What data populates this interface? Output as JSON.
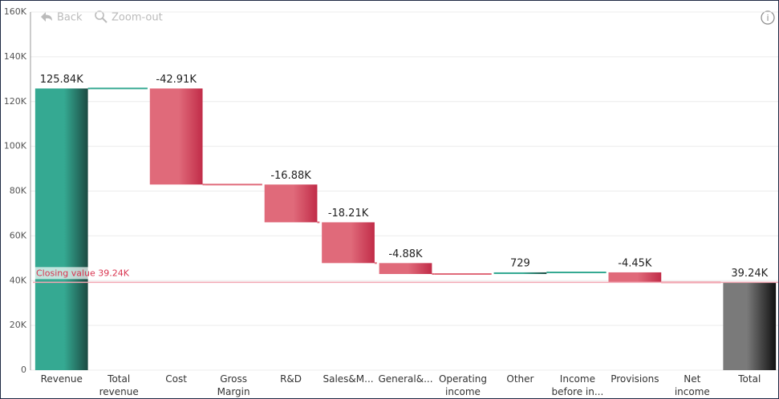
{
  "toolbar": {
    "back": "Back",
    "zoom_out": "Zoom-out"
  },
  "chart_data": {
    "type": "waterfall",
    "categories": [
      "Revenue",
      "Total revenue",
      "Cost",
      "Gross Margin",
      "R&D",
      "Sales&M...",
      "General&...",
      "Operating income",
      "Other",
      "Income before in...",
      "Provisions",
      "Net income",
      "Total"
    ],
    "values": [
      125840,
      null,
      -42910,
      null,
      -16880,
      -18210,
      -4880,
      null,
      729,
      null,
      -4450,
      null,
      39240
    ],
    "value_labels": [
      "125.84K",
      null,
      "-42.91K",
      null,
      "-16.88K",
      "-18.21K",
      "-4.88K",
      null,
      "729",
      null,
      "-4.45K",
      null,
      "39.24K"
    ],
    "increase_color": "#35a992",
    "decrease_color": "#e06a7a",
    "total_color": "#7a7a7a",
    "annotation": "Closing value 39.24K",
    "ylim": [
      0,
      160000
    ],
    "yticks": [
      0,
      {
        "value": 20000,
        "label": "20K"
      },
      {
        "value": 40000,
        "label": "40K"
      },
      {
        "value": 60000,
        "label": "60K"
      },
      {
        "value": 80000,
        "label": "80K"
      },
      {
        "value": 100000,
        "label": "100K"
      },
      {
        "value": 120000,
        "label": "120K"
      },
      {
        "value": 140000,
        "label": "140K"
      },
      {
        "value": 160000,
        "label": "160K"
      }
    ],
    "grid": true
  }
}
